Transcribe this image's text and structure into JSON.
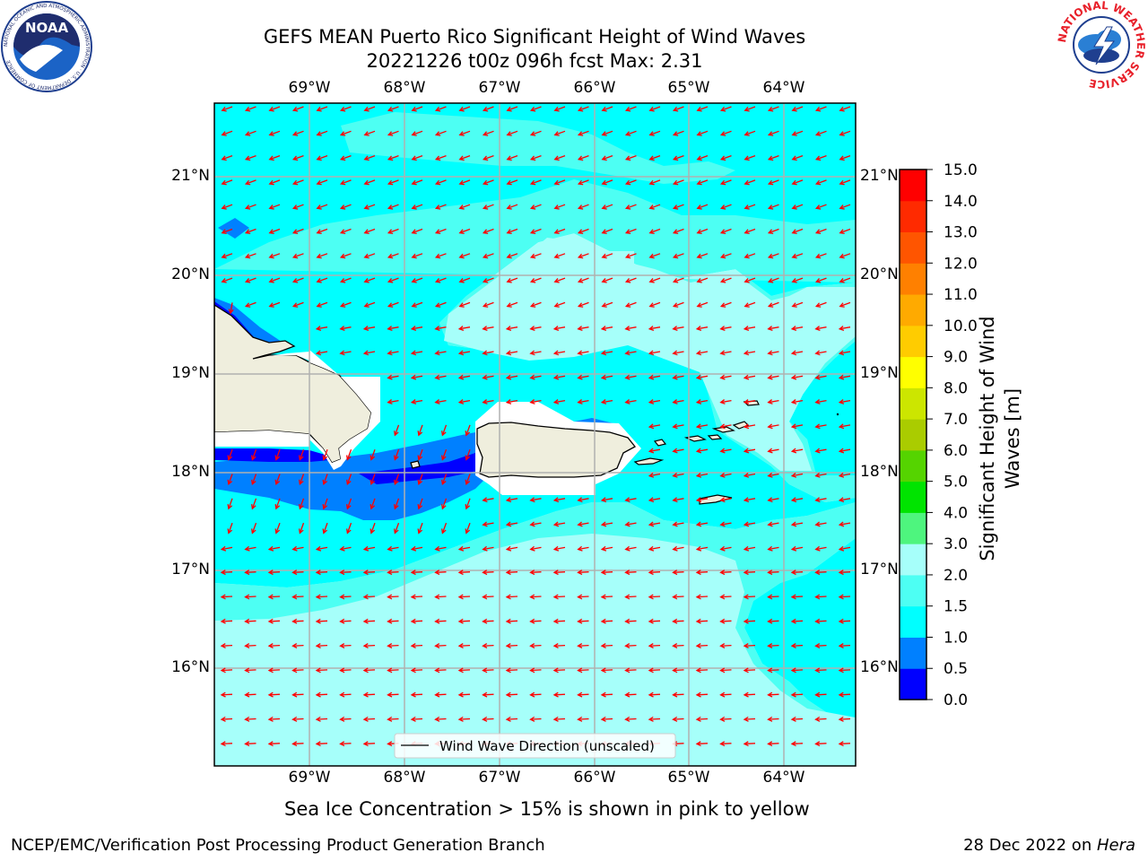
{
  "header": {
    "title_line1": "GEFS MEAN Puerto Rico Significant Height of Wind Waves",
    "title_line2": "20221226 t00z 096h fcst   Max: 2.31"
  },
  "logos": {
    "noaa_text": "NOAA",
    "noaa_ring_text": "NATIONAL OCEANIC AND ATMOSPHERIC ADMINISTRATION · U.S. DEPARTMENT OF COMMERCE",
    "nws_ring_text": "NATIONAL WEATHER SERVICE"
  },
  "map": {
    "lon_labels": [
      "69°W",
      "68°W",
      "67°W",
      "66°W",
      "65°W",
      "64°W"
    ],
    "lat_labels": [
      "21°N",
      "20°N",
      "19°N",
      "18°N",
      "17°N",
      "16°N"
    ],
    "legend_label": "Wind Wave Direction (unscaled)",
    "colors": {
      "land": "#efeedd",
      "sea_main": "#00ffff",
      "sea_mid": "#4dfff3",
      "sea_high": "#a6fffa",
      "sea_low": "#0080ff",
      "sea_lowest": "#0000ff",
      "arrow": "#ff0000",
      "grid": "#b0b0b0"
    }
  },
  "colorbar": {
    "label": "Significant Height of Wind Waves [m]",
    "ticks": [
      "0.0",
      "0.5",
      "1.0",
      "1.5",
      "2.0",
      "3.0",
      "4.0",
      "5.0",
      "6.0",
      "7.0",
      "8.0",
      "9.0",
      "10.0",
      "11.0",
      "12.0",
      "13.0",
      "14.0",
      "15.0"
    ],
    "colors": [
      "#0000ff",
      "#0080ff",
      "#00ffff",
      "#4dfff3",
      "#a6fffa",
      "#4ef57e",
      "#00e400",
      "#55d400",
      "#aacc00",
      "#cce600",
      "#ffff00",
      "#ffcc00",
      "#ffaa00",
      "#ff8000",
      "#ff5500",
      "#ff2a00",
      "#ff0000"
    ]
  },
  "notes": {
    "sea_ice": "Sea Ice Concentration > 15% is shown in pink to yellow"
  },
  "footer": {
    "left": "NCEP/EMC/Verification Post Processing Product Generation Branch",
    "right_prefix": "28 Dec 2022 on ",
    "right_machine": "Hera"
  }
}
